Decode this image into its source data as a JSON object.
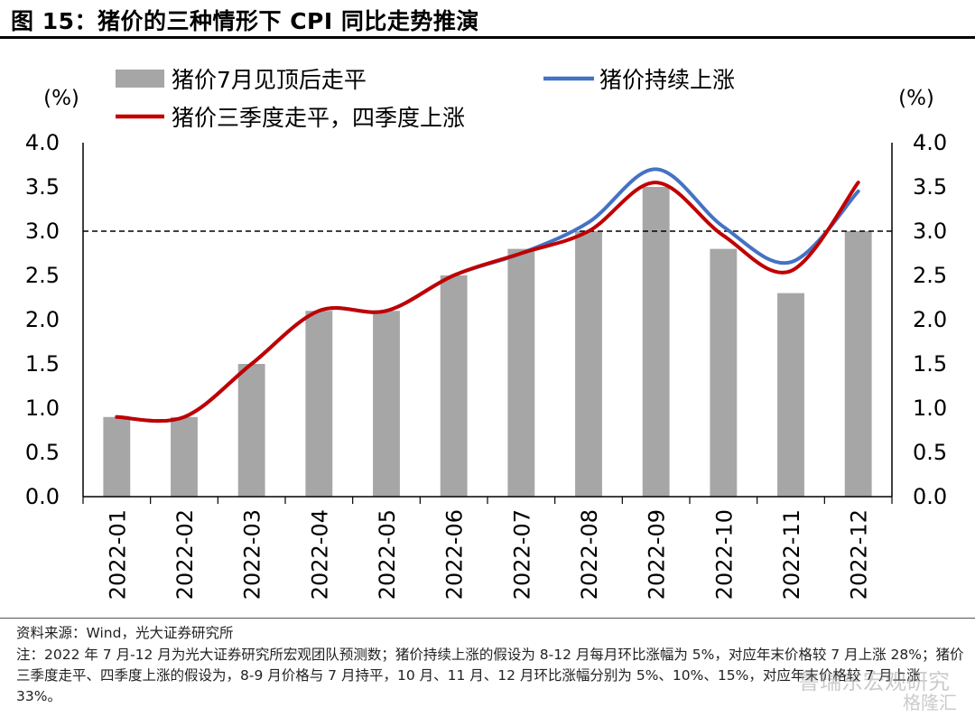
{
  "title": "图 15：猪价的三种情形下 CPI 同比走势推演",
  "source": "资料来源：Wind，光大证券研究所",
  "note": "注：2022 年 7 月-12 月为光大证券研究所宏观团队预测数；猪价持续上涨的假设为 8-12 月每月环比涨幅为 5%，对应年末价格较 7 月上涨 28%；猪价三季度走平、四季度上涨的假设为，8-9 月价格与 7 月持平，10 月、11 月、12 月环比涨幅分别为 5%、10%、15%，对应年末价格较 7 月上涨 33%。",
  "watermark": "鲁瑞东宏观研究",
  "watermark2": "格隆汇",
  "chart_data": {
    "type": "bar",
    "categories": [
      "2022-01",
      "2022-02",
      "2022-03",
      "2022-04",
      "2022-05",
      "2022-06",
      "2022-07",
      "2022-08",
      "2022-09",
      "2022-10",
      "2022-11",
      "2022-12"
    ],
    "y_left_label": "(%)",
    "y_right_label": "(%)",
    "ylim": [
      0,
      4.0
    ],
    "yticks": [
      "0.0",
      "0.5",
      "1.0",
      "1.5",
      "2.0",
      "2.5",
      "3.0",
      "3.5",
      "4.0"
    ],
    "reference_line": 3.0,
    "legend_position": "top",
    "grid": false,
    "series": [
      {
        "name": "猪价7月见顶后走平",
        "kind": "bar",
        "color": "#a6a6a6",
        "values": [
          0.9,
          0.9,
          1.5,
          2.1,
          2.1,
          2.5,
          2.8,
          3.0,
          3.5,
          2.8,
          2.3,
          3.0
        ]
      },
      {
        "name": "猪价持续上涨",
        "kind": "line",
        "color": "#4472c4",
        "values": [
          0.9,
          0.9,
          1.5,
          2.1,
          2.1,
          2.5,
          2.75,
          3.1,
          3.7,
          3.05,
          2.65,
          3.45
        ]
      },
      {
        "name": "猪价三季度走平，四季度上涨",
        "kind": "line",
        "color": "#c00000",
        "values": [
          0.9,
          0.9,
          1.5,
          2.1,
          2.1,
          2.5,
          2.75,
          3.0,
          3.55,
          2.95,
          2.55,
          3.55
        ]
      }
    ]
  }
}
